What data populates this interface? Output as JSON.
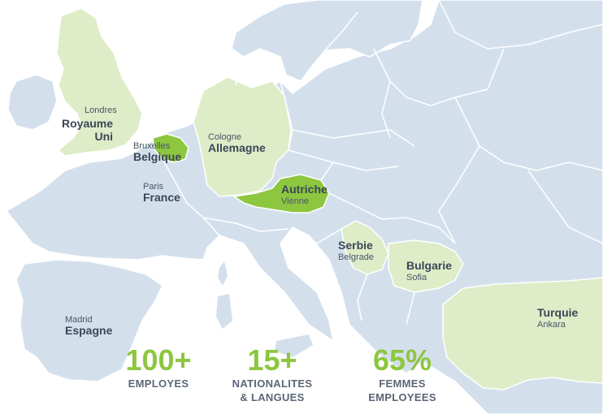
{
  "colors": {
    "sea": "#ffffff",
    "land": "#d3e0ec",
    "border": "#ffffff",
    "presence": "#deecc8",
    "highlight": "#8dc63f",
    "stat": "#8dc63f",
    "caption": "#5b6676",
    "label": "#3c4656"
  },
  "locations": {
    "uk": {
      "city": "Londres",
      "country_line1": "Royaume",
      "country_line2": "Uni"
    },
    "belgium": {
      "city": "Bruxelles",
      "country": "Belgique"
    },
    "germany": {
      "city": "Cologne",
      "country": "Allemagne"
    },
    "france": {
      "city": "Paris",
      "country": "France"
    },
    "austria": {
      "country": "Autriche",
      "city": "Vienne"
    },
    "serbia": {
      "country": "Serbie",
      "city": "Belgrade"
    },
    "bulgaria": {
      "country": "Bulgarie",
      "city": "Sofia"
    },
    "spain": {
      "city": "Madrid",
      "country": "Espagne"
    },
    "turkey": {
      "country": "Turquie",
      "city": "Ankara"
    }
  },
  "stats": [
    {
      "value": "100+",
      "caption_line1": "EMPLOYES",
      "caption_line2": ""
    },
    {
      "value": "15+",
      "caption_line1": "NATIONALITES",
      "caption_line2": "& LANGUES"
    },
    {
      "value": "65%",
      "caption_line1": "FEMMES",
      "caption_line2": "EMPLOYEES"
    }
  ]
}
